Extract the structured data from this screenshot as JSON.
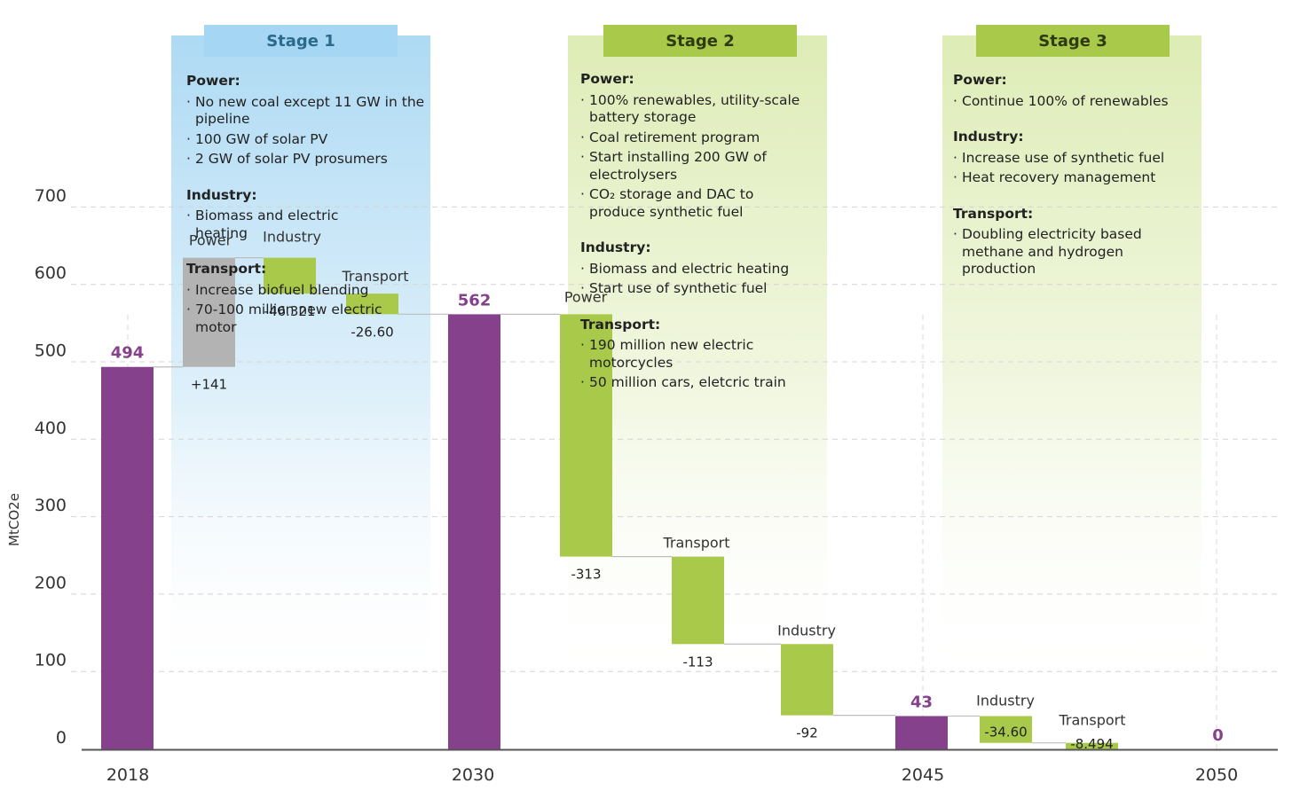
{
  "colors": {
    "stock": "#86418c",
    "increase": "#b3b3b3",
    "reduction": "#a9c94a",
    "stage1_band": "#a9d8f3",
    "stage1_tag": "#a5d6f3",
    "stage1_tag_text": "#2b6a8a",
    "stage2_band": "#dcebb2",
    "stage2_tag": "#a9c94a",
    "stage_tag_text": "#2e3a12"
  },
  "chart_data": {
    "type": "waterfall",
    "ylabel": "MtCO2e",
    "ylim": [
      0,
      700
    ],
    "y_ticks": [
      "0",
      "100",
      "200",
      "300",
      "400",
      "500",
      "600",
      "700"
    ],
    "grid": true,
    "years": [
      "2018",
      "2030",
      "2045",
      "2050"
    ],
    "steps": [
      {
        "id": "s2018",
        "kind": "total",
        "year": "2018",
        "value": 494,
        "label": "494"
      },
      {
        "id": "s1-power",
        "kind": "delta",
        "name": "Power",
        "value": 141,
        "label": "+141",
        "start": 494
      },
      {
        "id": "s1-industry",
        "kind": "delta",
        "name": "Industry",
        "value": -46.321,
        "label": "-46.321",
        "start": 635
      },
      {
        "id": "s1-transport",
        "kind": "delta",
        "name": "Transport",
        "value": -26.6,
        "label": "-26.60",
        "start": 588.679
      },
      {
        "id": "s2030",
        "kind": "total",
        "year": "2030",
        "value": 562,
        "label": "562"
      },
      {
        "id": "s2-power",
        "kind": "delta",
        "name": "Power",
        "value": -313,
        "label": "-313",
        "start": 562
      },
      {
        "id": "s2-transport",
        "kind": "delta",
        "name": "Transport",
        "value": -113,
        "label": "-113",
        "start": 249
      },
      {
        "id": "s2-industry",
        "kind": "delta",
        "name": "Industry",
        "value": -92,
        "label": "-92",
        "start": 136
      },
      {
        "id": "s2045",
        "kind": "total",
        "year": "2045",
        "value": 43,
        "label": "43"
      },
      {
        "id": "s3-industry",
        "kind": "delta",
        "name": "Industry",
        "value": -34.6,
        "label": "-34.60",
        "start": 43
      },
      {
        "id": "s3-transport",
        "kind": "delta",
        "name": "Transport",
        "value": -8.494,
        "label": "-8.494",
        "start": 8.4
      },
      {
        "id": "s2050",
        "kind": "total",
        "year": "2050",
        "value": 0,
        "label": "0"
      }
    ]
  },
  "stages": [
    {
      "title": "Stage 1",
      "sections": [
        {
          "heading": "Power:",
          "items": [
            "No new coal except 11 GW in the pipeline",
            "100 GW of solar PV",
            "2 GW of solar PV prosumers"
          ]
        },
        {
          "heading": "Industry:",
          "items": [
            "Biomass and electric heating"
          ]
        },
        {
          "heading": "Transport:",
          "items": [
            "Increase biofuel blending",
            "70-100 million new electric motor"
          ]
        }
      ]
    },
    {
      "title": "Stage 2",
      "sections": [
        {
          "heading": "Power:",
          "items": [
            "100% renewables, utility-scale battery storage",
            "Coal retirement program",
            "Start installing 200 GW of electrolysers",
            "CO₂ storage and DAC to produce synthetic fuel"
          ]
        },
        {
          "heading": "Industry:",
          "items": [
            "Biomass and electric heating",
            "Start use of synthetic fuel"
          ]
        },
        {
          "heading": "Transport:",
          "items": [
            "190 million new electric motorcycles",
            "50 million cars, eletcric train"
          ]
        }
      ]
    },
    {
      "title": "Stage 3",
      "sections": [
        {
          "heading": "Power:",
          "items": [
            "Continue 100% of renewables"
          ]
        },
        {
          "heading": "Industry:",
          "items": [
            "Increase use of synthetic fuel",
            "Heat recovery management"
          ]
        },
        {
          "heading": "Transport:",
          "items": [
            "Doubling electricity based methane and hydrogen production"
          ]
        }
      ]
    }
  ]
}
